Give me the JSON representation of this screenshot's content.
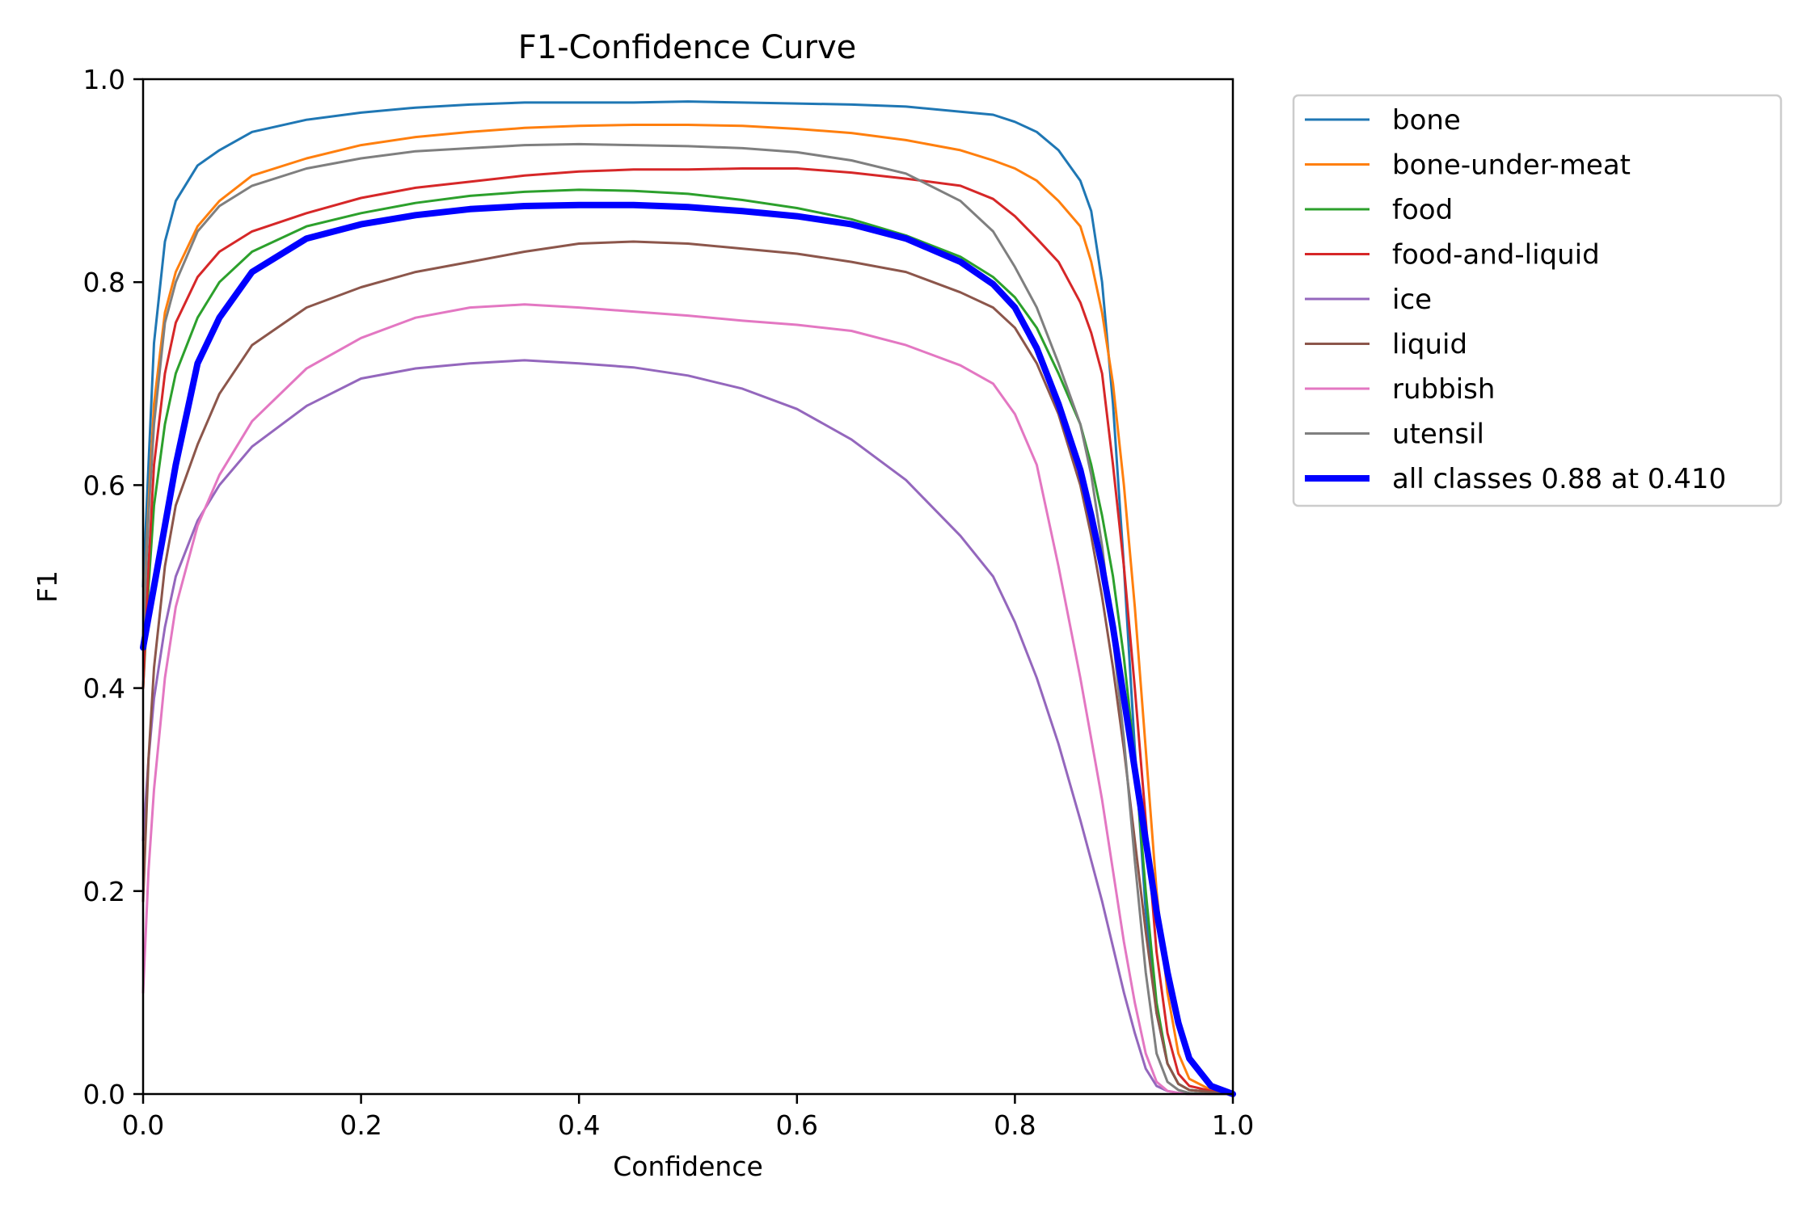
{
  "chart_data": {
    "type": "line",
    "title": "F1-Confidence Curve",
    "xlabel": "Confidence",
    "ylabel": "F1",
    "xlim": [
      0,
      1
    ],
    "ylim": [
      0,
      1
    ],
    "xticks": [
      "0.0",
      "0.2",
      "0.4",
      "0.6",
      "0.8",
      "1.0"
    ],
    "yticks": [
      "0.0",
      "0.2",
      "0.4",
      "0.6",
      "0.8",
      "1.0"
    ],
    "grid": false,
    "legend_position": "outside-top-right",
    "x": [
      0.0,
      0.005,
      0.01,
      0.02,
      0.03,
      0.05,
      0.07,
      0.1,
      0.15,
      0.2,
      0.25,
      0.3,
      0.35,
      0.4,
      0.45,
      0.5,
      0.55,
      0.6,
      0.65,
      0.7,
      0.75,
      0.78,
      0.8,
      0.82,
      0.84,
      0.86,
      0.87,
      0.88,
      0.89,
      0.9,
      0.91,
      0.92,
      0.93,
      0.94,
      0.95,
      0.96,
      0.98,
      1.0
    ],
    "series": [
      {
        "name": "bone",
        "color": "#1f77b4",
        "width": 3,
        "values": [
          0.5,
          0.62,
          0.74,
          0.84,
          0.88,
          0.915,
          0.93,
          0.948,
          0.96,
          0.967,
          0.972,
          0.975,
          0.977,
          0.977,
          0.977,
          0.978,
          0.977,
          0.976,
          0.975,
          0.973,
          0.968,
          0.965,
          0.958,
          0.948,
          0.93,
          0.9,
          0.87,
          0.8,
          0.68,
          0.52,
          0.34,
          0.18,
          0.08,
          0.03,
          0.01,
          0.004,
          0.002,
          0.0
        ]
      },
      {
        "name": "bone-under-meat",
        "color": "#ff7f0e",
        "width": 3,
        "values": [
          0.45,
          0.58,
          0.68,
          0.77,
          0.81,
          0.855,
          0.88,
          0.905,
          0.922,
          0.935,
          0.943,
          0.948,
          0.952,
          0.954,
          0.955,
          0.955,
          0.954,
          0.951,
          0.947,
          0.94,
          0.93,
          0.92,
          0.912,
          0.9,
          0.88,
          0.855,
          0.82,
          0.77,
          0.7,
          0.6,
          0.48,
          0.34,
          0.2,
          0.1,
          0.04,
          0.015,
          0.004,
          0.0
        ]
      },
      {
        "name": "food",
        "color": "#2ca02c",
        "width": 3,
        "values": [
          0.4,
          0.5,
          0.58,
          0.66,
          0.71,
          0.765,
          0.8,
          0.83,
          0.855,
          0.868,
          0.878,
          0.885,
          0.889,
          0.891,
          0.89,
          0.887,
          0.881,
          0.873,
          0.862,
          0.846,
          0.825,
          0.805,
          0.785,
          0.755,
          0.71,
          0.66,
          0.62,
          0.57,
          0.51,
          0.43,
          0.33,
          0.2,
          0.09,
          0.03,
          0.01,
          0.004,
          0.002,
          0.0
        ]
      },
      {
        "name": "food-and-liquid",
        "color": "#d62728",
        "width": 3,
        "values": [
          0.4,
          0.52,
          0.62,
          0.71,
          0.76,
          0.805,
          0.83,
          0.85,
          0.868,
          0.883,
          0.893,
          0.899,
          0.905,
          0.909,
          0.911,
          0.911,
          0.912,
          0.912,
          0.908,
          0.902,
          0.895,
          0.882,
          0.865,
          0.843,
          0.82,
          0.78,
          0.75,
          0.71,
          0.62,
          0.52,
          0.4,
          0.27,
          0.14,
          0.06,
          0.02,
          0.008,
          0.003,
          0.0
        ]
      },
      {
        "name": "ice",
        "color": "#9467bd",
        "width": 3,
        "values": [
          0.25,
          0.33,
          0.39,
          0.46,
          0.51,
          0.565,
          0.6,
          0.638,
          0.678,
          0.705,
          0.715,
          0.72,
          0.723,
          0.72,
          0.716,
          0.708,
          0.695,
          0.675,
          0.645,
          0.605,
          0.55,
          0.51,
          0.465,
          0.41,
          0.345,
          0.27,
          0.23,
          0.19,
          0.145,
          0.1,
          0.06,
          0.025,
          0.008,
          0.003,
          0.001,
          0.0,
          0.0,
          0.0
        ]
      },
      {
        "name": "liquid",
        "color": "#8c564b",
        "width": 3,
        "values": [
          0.19,
          0.33,
          0.42,
          0.52,
          0.58,
          0.64,
          0.69,
          0.738,
          0.775,
          0.795,
          0.81,
          0.82,
          0.83,
          0.838,
          0.84,
          0.838,
          0.833,
          0.828,
          0.82,
          0.81,
          0.79,
          0.775,
          0.755,
          0.72,
          0.67,
          0.6,
          0.55,
          0.49,
          0.42,
          0.34,
          0.25,
          0.16,
          0.08,
          0.03,
          0.01,
          0.004,
          0.002,
          0.0
        ]
      },
      {
        "name": "rubbish",
        "color": "#e377c2",
        "width": 3,
        "values": [
          0.1,
          0.22,
          0.3,
          0.41,
          0.48,
          0.56,
          0.61,
          0.663,
          0.715,
          0.745,
          0.765,
          0.775,
          0.778,
          0.775,
          0.771,
          0.767,
          0.762,
          0.758,
          0.752,
          0.738,
          0.718,
          0.7,
          0.67,
          0.62,
          0.52,
          0.41,
          0.35,
          0.29,
          0.22,
          0.15,
          0.09,
          0.04,
          0.012,
          0.003,
          0.001,
          0.0,
          0.0,
          0.0
        ]
      },
      {
        "name": "utensil",
        "color": "#7f7f7f",
        "width": 3,
        "values": [
          0.45,
          0.57,
          0.66,
          0.76,
          0.8,
          0.85,
          0.875,
          0.895,
          0.912,
          0.922,
          0.929,
          0.932,
          0.935,
          0.936,
          0.935,
          0.934,
          0.932,
          0.928,
          0.92,
          0.907,
          0.88,
          0.85,
          0.815,
          0.775,
          0.72,
          0.66,
          0.61,
          0.54,
          0.45,
          0.35,
          0.23,
          0.12,
          0.04,
          0.012,
          0.004,
          0.001,
          0.0,
          0.0
        ]
      },
      {
        "name": "all classes 0.88 at 0.410",
        "color": "#0000ff",
        "width": 8,
        "values": [
          0.44,
          0.47,
          0.5,
          0.56,
          0.62,
          0.72,
          0.765,
          0.81,
          0.843,
          0.857,
          0.866,
          0.872,
          0.875,
          0.876,
          0.876,
          0.874,
          0.87,
          0.865,
          0.857,
          0.843,
          0.82,
          0.798,
          0.775,
          0.735,
          0.68,
          0.615,
          0.57,
          0.52,
          0.46,
          0.39,
          0.32,
          0.25,
          0.18,
          0.12,
          0.07,
          0.035,
          0.008,
          0.0
        ]
      }
    ]
  }
}
